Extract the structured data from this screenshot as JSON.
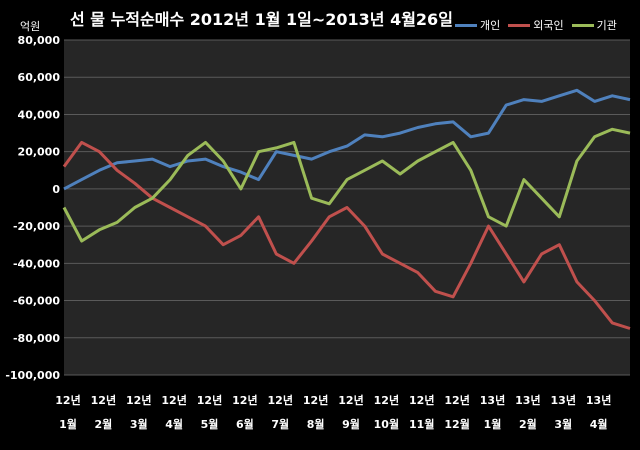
{
  "chart_data": {
    "type": "line",
    "title": "선 물 누적순매수 2012년 1월 1일~2013년 4월26일",
    "unit_label": "억원",
    "ylim": [
      -100000,
      80000
    ],
    "yticks": [
      "80,000",
      "60,000",
      "40,000",
      "20,000",
      "0",
      "-20,000",
      "-40,000",
      "-60,000",
      "-80,000",
      "-100,000"
    ],
    "ytick_values": [
      80000,
      60000,
      40000,
      20000,
      0,
      -20000,
      -40000,
      -60000,
      -80000,
      -100000
    ],
    "grid": true,
    "legend_position": "top-right",
    "categories": [
      [
        "12년",
        "1월"
      ],
      [
        "12년",
        "2월"
      ],
      [
        "12년",
        "3월"
      ],
      [
        "12년",
        "4월"
      ],
      [
        "12년",
        "5월"
      ],
      [
        "12년",
        "6월"
      ],
      [
        "12년",
        "7월"
      ],
      [
        "12년",
        "8월"
      ],
      [
        "12년",
        "9월"
      ],
      [
        "12년",
        "10월"
      ],
      [
        "12년",
        "11월"
      ],
      [
        "12년",
        "12월"
      ],
      [
        "13년",
        "1월"
      ],
      [
        "13년",
        "2월"
      ],
      [
        "13년",
        "3월"
      ],
      [
        "13년",
        "4월"
      ]
    ],
    "x": [
      0,
      0.5,
      1,
      1.5,
      2,
      2.5,
      3,
      3.5,
      4,
      4.5,
      5,
      5.5,
      6,
      6.5,
      7,
      7.5,
      8,
      8.5,
      9,
      9.5,
      10,
      10.5,
      11,
      11.5,
      12,
      12.5,
      13,
      13.5,
      14,
      14.5,
      15,
      15.5,
      16
    ],
    "series": [
      {
        "name": "개인",
        "color": "#4f81bd",
        "values": [
          0,
          5000,
          10000,
          14000,
          15000,
          16000,
          12000,
          15000,
          16000,
          12000,
          9000,
          5000,
          20000,
          18000,
          16000,
          20000,
          23000,
          29000,
          28000,
          30000,
          33000,
          35000,
          36000,
          28000,
          30000,
          45000,
          48000,
          47000,
          50000,
          53000,
          47000,
          50000,
          48000
        ]
      },
      {
        "name": "외국인",
        "color": "#c0504d",
        "values": [
          12000,
          25000,
          20000,
          10000,
          3000,
          -5000,
          -10000,
          -15000,
          -20000,
          -30000,
          -25000,
          -15000,
          -35000,
          -40000,
          -28000,
          -15000,
          -10000,
          -20000,
          -35000,
          -40000,
          -45000,
          -55000,
          -58000,
          -40000,
          -20000,
          -35000,
          -50000,
          -35000,
          -30000,
          -50000,
          -60000,
          -72000,
          -75000
        ]
      },
      {
        "name": "기관",
        "color": "#9bbb59",
        "values": [
          -10000,
          -28000,
          -22000,
          -18000,
          -10000,
          -5000,
          5000,
          18000,
          25000,
          15000,
          0,
          20000,
          22000,
          25000,
          -5000,
          -8000,
          5000,
          10000,
          15000,
          8000,
          15000,
          20000,
          25000,
          10000,
          -15000,
          -20000,
          5000,
          -5000,
          -15000,
          15000,
          28000,
          32000,
          30000
        ]
      }
    ]
  }
}
